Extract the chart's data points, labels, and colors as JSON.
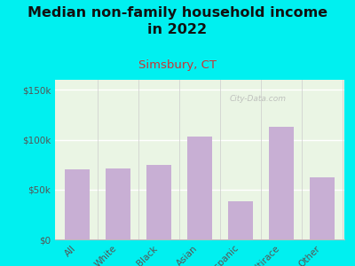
{
  "title": "Median non-family household income\nin 2022",
  "subtitle": "Simsbury, CT",
  "categories": [
    "All",
    "White",
    "Black",
    "Asian",
    "Hispanic",
    "Multirace",
    "Other"
  ],
  "values": [
    70000,
    71000,
    75000,
    103000,
    38000,
    113000,
    62000
  ],
  "bar_color": "#c8afd4",
  "background_outer": "#00f0f0",
  "background_inner": "#eaf5e4",
  "title_fontsize": 11.5,
  "subtitle_fontsize": 9.5,
  "subtitle_color": "#cc3333",
  "title_color": "#111111",
  "tick_label_color": "#555555",
  "axis_label_color": "#555555",
  "ylim": [
    0,
    160000
  ],
  "yticks": [
    0,
    50000,
    100000,
    150000
  ],
  "watermark": "City-Data.com"
}
